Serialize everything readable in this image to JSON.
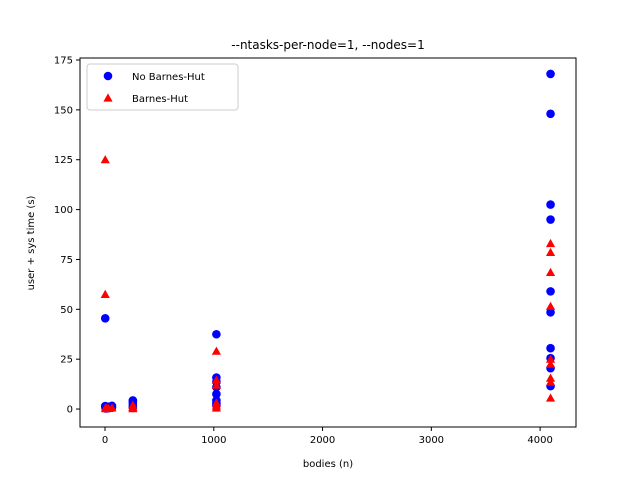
{
  "chart_data": {
    "type": "scatter",
    "title": "--ntasks-per-node=1, --nodes=1",
    "xlabel": "bodies (n)",
    "ylabel": "user + sys time (s)",
    "xlim": [
      -230,
      4330
    ],
    "ylim": [
      -9,
      176
    ],
    "xticks": [
      0,
      1000,
      2000,
      3000,
      4000
    ],
    "xtick_labels": [
      "0",
      "1000",
      "2000",
      "3000",
      "4000"
    ],
    "yticks": [
      0,
      25,
      50,
      75,
      100,
      125,
      150,
      175
    ],
    "ytick_labels": [
      "0",
      "25",
      "50",
      "75",
      "100",
      "125",
      "150",
      "175"
    ],
    "grid": false,
    "legend_position": "upper-left",
    "series": [
      {
        "name": "No Barnes-Hut",
        "marker": "circle",
        "color": "#0000ff",
        "points": [
          {
            "x": 2,
            "y": 45.5
          },
          {
            "x": 2,
            "y": 1.5
          },
          {
            "x": 4,
            "y": 0.6
          },
          {
            "x": 8,
            "y": 0.3
          },
          {
            "x": 16,
            "y": 0.8
          },
          {
            "x": 32,
            "y": 1.2
          },
          {
            "x": 32,
            "y": 0.4
          },
          {
            "x": 64,
            "y": 1.6
          },
          {
            "x": 64,
            "y": 0.7
          },
          {
            "x": 256,
            "y": 4.3
          },
          {
            "x": 256,
            "y": 3.6
          },
          {
            "x": 256,
            "y": 2.5
          },
          {
            "x": 256,
            "y": 1.4
          },
          {
            "x": 256,
            "y": 0.8
          },
          {
            "x": 1024,
            "y": 37.5
          },
          {
            "x": 1024,
            "y": 15.8
          },
          {
            "x": 1024,
            "y": 13.7
          },
          {
            "x": 1024,
            "y": 11.0
          },
          {
            "x": 1024,
            "y": 7.5
          },
          {
            "x": 1024,
            "y": 4.3
          },
          {
            "x": 1024,
            "y": 2.8
          },
          {
            "x": 1024,
            "y": 1.8
          },
          {
            "x": 4096,
            "y": 168.0
          },
          {
            "x": 4096,
            "y": 148.0
          },
          {
            "x": 4096,
            "y": 102.5
          },
          {
            "x": 4096,
            "y": 95.0
          },
          {
            "x": 4096,
            "y": 59.0
          },
          {
            "x": 4096,
            "y": 48.5
          },
          {
            "x": 4096,
            "y": 30.5
          },
          {
            "x": 4096,
            "y": 25.5
          },
          {
            "x": 4096,
            "y": 20.5
          },
          {
            "x": 4096,
            "y": 11.5
          }
        ]
      },
      {
        "name": "Barnes-Hut",
        "marker": "triangle",
        "color": "#ff0000",
        "points": [
          {
            "x": 2,
            "y": 125.0
          },
          {
            "x": 2,
            "y": 57.5
          },
          {
            "x": 4,
            "y": 0.5
          },
          {
            "x": 8,
            "y": 0.2
          },
          {
            "x": 16,
            "y": 0.4
          },
          {
            "x": 32,
            "y": 0.3
          },
          {
            "x": 64,
            "y": 0.6
          },
          {
            "x": 256,
            "y": 2.0
          },
          {
            "x": 256,
            "y": 0.9
          },
          {
            "x": 256,
            "y": 0.2
          },
          {
            "x": 1024,
            "y": 29.0
          },
          {
            "x": 1024,
            "y": 14.5
          },
          {
            "x": 1024,
            "y": 12.0
          },
          {
            "x": 1024,
            "y": 3.0
          },
          {
            "x": 1024,
            "y": 1.5
          },
          {
            "x": 1024,
            "y": 0.5
          },
          {
            "x": 4096,
            "y": 83.0
          },
          {
            "x": 4096,
            "y": 78.5
          },
          {
            "x": 4096,
            "y": 68.5
          },
          {
            "x": 4096,
            "y": 51.5
          },
          {
            "x": 4096,
            "y": 25.0
          },
          {
            "x": 4096,
            "y": 22.5
          },
          {
            "x": 4096,
            "y": 15.5
          },
          {
            "x": 4096,
            "y": 13.5
          },
          {
            "x": 4096,
            "y": 5.5
          }
        ]
      }
    ]
  }
}
